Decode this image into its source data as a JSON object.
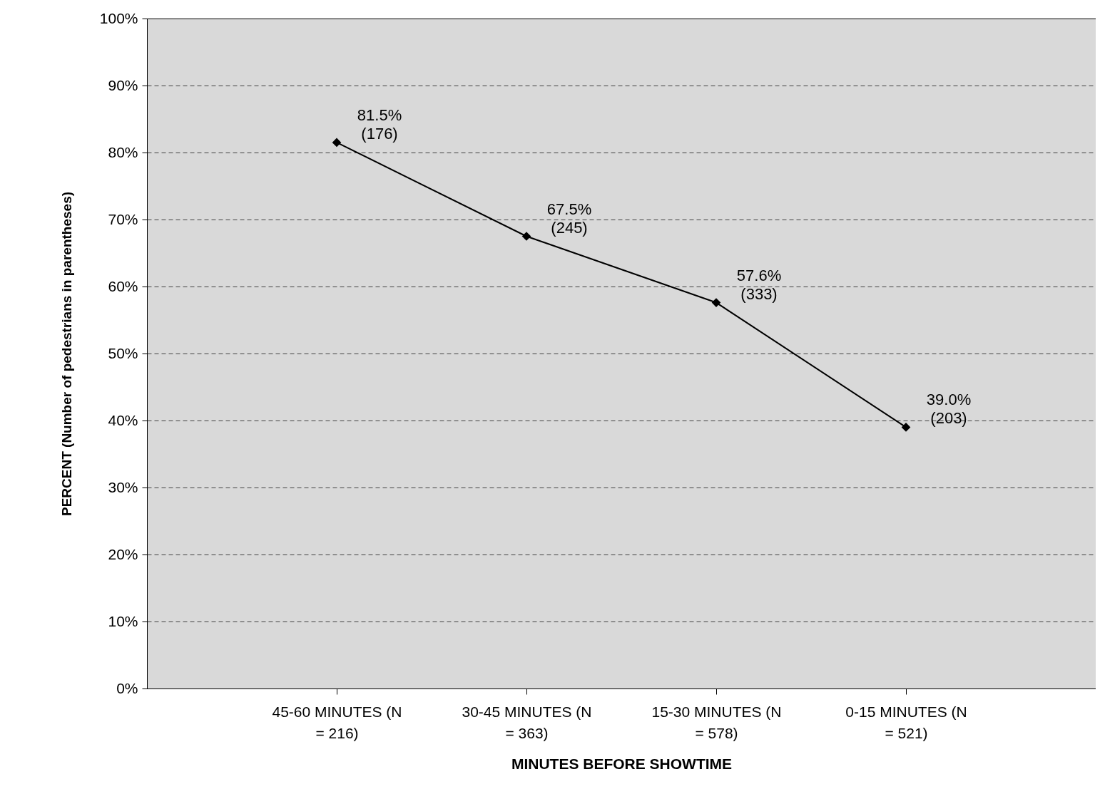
{
  "chart_data": {
    "type": "line",
    "xlabel": "MINUTES BEFORE SHOWTIME",
    "ylabel": "PERCENT  (Number of pedestrians in parentheses)",
    "categories": [
      "45-60 MINUTES (N = 216)",
      "30-45 MINUTES (N = 363)",
      "15-30 MINUTES (N = 578)",
      "0-15 MINUTES (N = 521)"
    ],
    "series": [
      {
        "color": "#000000",
        "values": [
          81.5,
          67.5,
          57.6,
          39.0
        ]
      }
    ],
    "value_labels": [
      "81.5% (176)",
      "67.5% (245)",
      "57.6% (333)",
      "39.0% (203)"
    ],
    "ylim": [
      0,
      100
    ],
    "yticks": [
      {
        "value": 0,
        "label": "0%"
      },
      {
        "value": 10,
        "label": "10%"
      },
      {
        "value": 20,
        "label": "20%"
      },
      {
        "value": 30,
        "label": "30%"
      },
      {
        "value": 40,
        "label": "40%"
      },
      {
        "value": 50,
        "label": "50%"
      },
      {
        "value": 60,
        "label": "60%"
      },
      {
        "value": 70,
        "label": "70%"
      },
      {
        "value": 80,
        "label": "80%"
      },
      {
        "value": 90,
        "label": "90%"
      },
      {
        "value": 100,
        "label": "100%"
      }
    ],
    "grid": "y",
    "marker": "diamond",
    "line_style": "solid"
  }
}
